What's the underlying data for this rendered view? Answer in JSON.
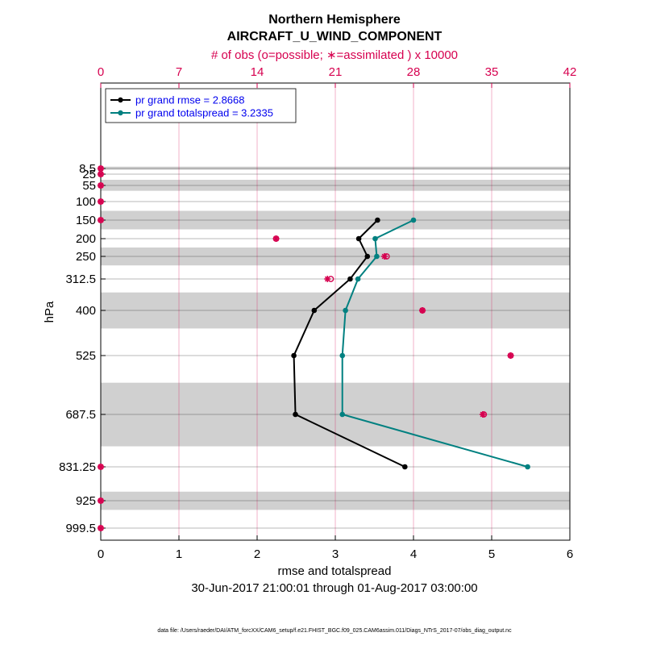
{
  "chart_data": {
    "type": "line",
    "title": "Northern Hemisphere",
    "subtitle": "AIRCRAFT_U_WIND_COMPONENT",
    "top_axis_label": "# of obs (o=possible; ∗=assimilated ) x 10000",
    "top_ticks": [
      "0",
      "7",
      "14",
      "21",
      "28",
      "35",
      "42"
    ],
    "top_range": [
      0,
      42
    ],
    "xlabel": "rmse and totalspread",
    "xlim": [
      0,
      6
    ],
    "x_ticks": [
      "0",
      "1",
      "2",
      "3",
      "4",
      "5",
      "6"
    ],
    "ylabel": "hPa",
    "levels": [
      8.5,
      25,
      55,
      100,
      150,
      200,
      250,
      312.5,
      400,
      525,
      687.5,
      831.25,
      925,
      999.5
    ],
    "level_labels": [
      "8.5",
      "25",
      "55",
      "100",
      "150",
      "200",
      "250",
      "312.5",
      "400",
      "525",
      "687.5",
      "831.25",
      "925",
      "999.5"
    ],
    "shaded_bands": [
      [
        7,
        12
      ],
      [
        40,
        70
      ],
      [
        125,
        175
      ],
      [
        225,
        275
      ],
      [
        350,
        450
      ],
      [
        600,
        775
      ],
      [
        900,
        950
      ]
    ],
    "series": [
      {
        "name": "pr grand rmse = 2.8668",
        "color": "#000000",
        "levels": [
          150,
          200,
          250,
          312.5,
          400,
          525,
          687.5,
          831.25
        ],
        "values": [
          3.54,
          3.3,
          3.41,
          3.19,
          2.73,
          2.47,
          2.49,
          3.89
        ]
      },
      {
        "name": "pr grand totalspread = 3.2335",
        "color": "#008080",
        "levels": [
          150,
          200,
          250,
          312.5,
          400,
          525,
          687.5,
          831.25
        ],
        "values": [
          4.0,
          3.51,
          3.53,
          3.29,
          3.13,
          3.09,
          3.09,
          5.46
        ]
      }
    ],
    "obs": {
      "color": "#d6004f",
      "levels": [
        8.5,
        25,
        55,
        100,
        150,
        200,
        250,
        312.5,
        400,
        525,
        687.5,
        831.25,
        925,
        999.5
      ],
      "possible": [
        0,
        0,
        0,
        0,
        0,
        15.7,
        25.6,
        20.6,
        28.8,
        36.7,
        34.3,
        0,
        0,
        0
      ],
      "assimilated": [
        0,
        0,
        0,
        0,
        0,
        15.7,
        25.4,
        20.3,
        28.8,
        36.7,
        34.2,
        0,
        0,
        0
      ]
    },
    "footer_left": "30-Jun-2017 21:00:01 through 01-Aug-2017 03:00:00",
    "data_file": "data file: /Users/raeder/DAI/ATM_forcXX/CAM6_setup/f.e21.FHIST_BGC.f09_025.CAM6assim.011/Diags_NTrS_2017-07/obs_diag_output.nc"
  }
}
